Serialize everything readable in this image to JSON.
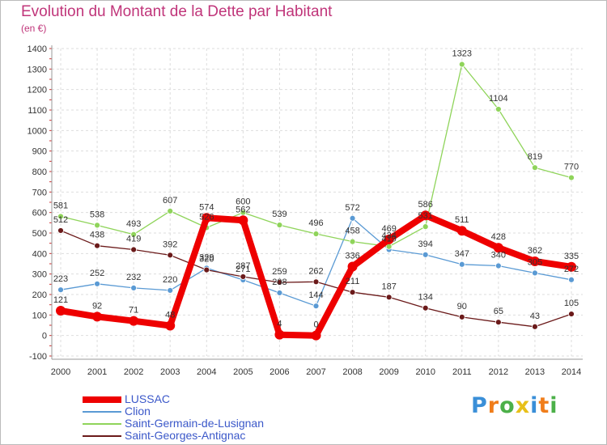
{
  "chart_data": {
    "type": "line",
    "title": "Evolution du Montant de la Dette par Habitant",
    "subtitle": "(en €)",
    "categories": [
      "2000",
      "2001",
      "2002",
      "2003",
      "2004",
      "2005",
      "2006",
      "2007",
      "2008",
      "2009",
      "2010",
      "2011",
      "2012",
      "2013",
      "2014"
    ],
    "ylim": [
      -100,
      1400
    ],
    "yticks": [
      -100,
      0,
      100,
      200,
      300,
      400,
      500,
      600,
      700,
      800,
      900,
      1000,
      1100,
      1200,
      1300,
      1400
    ],
    "grid": true,
    "legend_position": "bottom-left",
    "series": [
      {
        "name": "LUSSAC",
        "color": "#ee0000",
        "emphasis": true,
        "values": [
          121,
          92,
          71,
          48,
          574,
          562,
          4,
          0,
          336,
          469,
          586,
          511,
          428,
          362,
          335
        ]
      },
      {
        "name": "Clion",
        "color": "#5a9ad4",
        "emphasis": false,
        "values": [
          223,
          252,
          232,
          220,
          329,
          271,
          208,
          144,
          572,
          419,
          394,
          347,
          340,
          305,
          272
        ]
      },
      {
        "name": "Saint-Germain-de-Lusignan",
        "color": "#8fd45a",
        "emphasis": false,
        "values": [
          581,
          538,
          493,
          607,
          526,
          600,
          539,
          496,
          458,
          434,
          531,
          1323,
          1104,
          819,
          770
        ]
      },
      {
        "name": "Saint-Georges-Antignac",
        "color": "#6b1a1a",
        "emphasis": false,
        "values": [
          512,
          438,
          419,
          392,
          320,
          287,
          259,
          262,
          211,
          187,
          134,
          90,
          65,
          43,
          105
        ]
      }
    ]
  },
  "logo": {
    "letters": [
      "P",
      "r",
      "o",
      "x",
      "i",
      "t",
      "i"
    ],
    "colors": [
      "#3a8fd8",
      "#f07d1a",
      "#4cb049",
      "#e8c019",
      "#3a8fd8",
      "#f07d1a",
      "#4cb049"
    ]
  }
}
